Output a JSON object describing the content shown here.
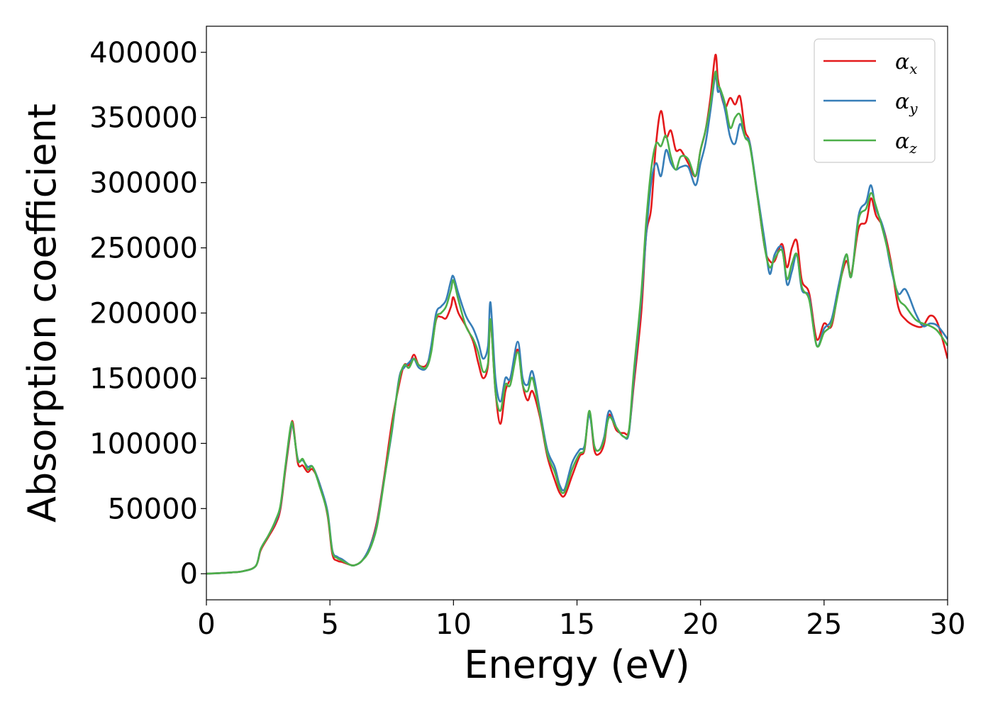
{
  "chart_data": {
    "type": "line",
    "xlabel": "Energy (eV)",
    "ylabel": "Absorption coefficient",
    "xlim": [
      0,
      30
    ],
    "ylim": [
      -20000,
      420000
    ],
    "xticks": [
      0,
      5,
      10,
      15,
      20,
      25,
      30
    ],
    "yticks": [
      0,
      50000,
      100000,
      150000,
      200000,
      250000,
      300000,
      350000,
      400000
    ],
    "xtick_labels": [
      "0",
      "5",
      "10",
      "15",
      "20",
      "25",
      "30"
    ],
    "ytick_labels": [
      "0",
      "50000",
      "100000",
      "150000",
      "200000",
      "250000",
      "300000",
      "350000",
      "400000"
    ],
    "grid": false,
    "legend_position": "top-right",
    "series": [
      {
        "name": "α_x",
        "label_base": "α",
        "label_sub": "x",
        "color": "#e41a1c",
        "x": [
          0,
          1,
          1.5,
          2,
          2.2,
          2.5,
          2.8,
          3,
          3.2,
          3.4,
          3.5,
          3.7,
          3.9,
          4.1,
          4.3,
          4.6,
          4.9,
          5.1,
          5.3,
          5.5,
          5.8,
          6,
          6.3,
          6.6,
          6.9,
          7.2,
          7.5,
          7.8,
          8,
          8.2,
          8.4,
          8.6,
          8.9,
          9.1,
          9.3,
          9.5,
          9.7,
          9.9,
          10,
          10.2,
          10.5,
          10.8,
          11,
          11.2,
          11.4,
          11.5,
          11.7,
          11.9,
          12.1,
          12.3,
          12.6,
          12.8,
          13,
          13.2,
          13.5,
          13.8,
          14.1,
          14.3,
          14.5,
          14.8,
          15.1,
          15.3,
          15.5,
          15.7,
          15.9,
          16.1,
          16.3,
          16.6,
          16.9,
          17.1,
          17.3,
          17.6,
          17.8,
          18,
          18.2,
          18.4,
          18.6,
          18.8,
          19,
          19.2,
          19.5,
          19.8,
          20,
          20.2,
          20.4,
          20.6,
          20.7,
          20.8,
          21,
          21.2,
          21.4,
          21.6,
          21.8,
          22,
          22.3,
          22.6,
          22.8,
          23,
          23.3,
          23.5,
          23.7,
          23.9,
          24.1,
          24.4,
          24.7,
          25,
          25.3,
          25.6,
          25.9,
          26.1,
          26.4,
          26.7,
          26.9,
          27.1,
          27.4,
          27.7,
          28,
          28.3,
          28.7,
          29,
          29.3,
          29.6,
          30
        ],
        "y": [
          0,
          1000,
          2000,
          6000,
          18000,
          28000,
          38000,
          50000,
          80000,
          108000,
          116000,
          85000,
          83000,
          78000,
          80000,
          68000,
          45000,
          15000,
          10000,
          9000,
          7000,
          6500,
          10000,
          20000,
          40000,
          75000,
          115000,
          145000,
          160000,
          160000,
          168000,
          160000,
          160000,
          172000,
          195000,
          197000,
          196000,
          205000,
          212000,
          200000,
          190000,
          178000,
          162000,
          150000,
          160000,
          195000,
          140000,
          115000,
          140000,
          150000,
          172000,
          145000,
          133000,
          140000,
          120000,
          90000,
          72000,
          62000,
          60000,
          75000,
          90000,
          95000,
          124000,
          95000,
          92000,
          100000,
          122000,
          110000,
          108000,
          110000,
          145000,
          200000,
          260000,
          280000,
          330000,
          355000,
          335000,
          340000,
          325000,
          325000,
          315000,
          305000,
          325000,
          340000,
          365000,
          398000,
          380000,
          370000,
          358000,
          365000,
          360000,
          366000,
          340000,
          330000,
          290000,
          250000,
          240000,
          240000,
          253000,
          235000,
          250000,
          255000,
          225000,
          215000,
          180000,
          192000,
          190000,
          220000,
          240000,
          230000,
          265000,
          270000,
          288000,
          275000,
          265000,
          240000,
          205000,
          195000,
          190000,
          190000,
          198000,
          192000,
          165000
        ]
      },
      {
        "name": "α_y",
        "label_base": "α",
        "label_sub": "y",
        "color": "#377eb8",
        "x": [
          0,
          1,
          1.5,
          2,
          2.2,
          2.5,
          2.8,
          3,
          3.2,
          3.4,
          3.5,
          3.7,
          3.9,
          4.1,
          4.3,
          4.6,
          4.9,
          5.1,
          5.3,
          5.5,
          5.8,
          6,
          6.3,
          6.6,
          6.9,
          7.2,
          7.5,
          7.8,
          8,
          8.2,
          8.4,
          8.6,
          8.9,
          9.1,
          9.3,
          9.5,
          9.7,
          9.9,
          10,
          10.2,
          10.5,
          10.8,
          11,
          11.2,
          11.4,
          11.5,
          11.7,
          11.9,
          12.1,
          12.3,
          12.6,
          12.8,
          13,
          13.2,
          13.5,
          13.8,
          14.1,
          14.3,
          14.5,
          14.8,
          15.1,
          15.3,
          15.5,
          15.7,
          15.9,
          16.1,
          16.3,
          16.6,
          16.9,
          17.1,
          17.3,
          17.6,
          17.8,
          18,
          18.2,
          18.4,
          18.6,
          18.8,
          19,
          19.2,
          19.5,
          19.8,
          20,
          20.2,
          20.4,
          20.6,
          20.7,
          20.8,
          21,
          21.2,
          21.4,
          21.6,
          21.8,
          22,
          22.3,
          22.6,
          22.8,
          23,
          23.3,
          23.5,
          23.7,
          23.9,
          24.1,
          24.4,
          24.7,
          25,
          25.3,
          25.6,
          25.9,
          26.1,
          26.4,
          26.7,
          26.9,
          27.1,
          27.4,
          27.7,
          28,
          28.3,
          28.7,
          29,
          29.3,
          29.6,
          30
        ],
        "y": [
          0,
          1000,
          2000,
          6000,
          19000,
          29000,
          40000,
          52000,
          82000,
          110000,
          113000,
          88000,
          87000,
          82000,
          82000,
          68000,
          48000,
          18000,
          13000,
          11000,
          7000,
          6500,
          10000,
          20000,
          38000,
          73000,
          108000,
          150000,
          158000,
          162000,
          165000,
          158000,
          158000,
          175000,
          200000,
          205000,
          210000,
          225000,
          228000,
          215000,
          198000,
          188000,
          178000,
          165000,
          175000,
          208000,
          150000,
          132000,
          150000,
          150000,
          178000,
          150000,
          145000,
          155000,
          125000,
          95000,
          82000,
          68000,
          65000,
          85000,
          95000,
          98000,
          122000,
          98000,
          95000,
          105000,
          125000,
          112000,
          105000,
          108000,
          150000,
          210000,
          260000,
          300000,
          315000,
          305000,
          325000,
          315000,
          310000,
          312000,
          312000,
          298000,
          315000,
          330000,
          355000,
          382000,
          370000,
          370000,
          355000,
          335000,
          330000,
          345000,
          335000,
          330000,
          292000,
          255000,
          230000,
          245000,
          250000,
          222000,
          232000,
          245000,
          218000,
          212000,
          175000,
          188000,
          195000,
          222000,
          245000,
          228000,
          275000,
          285000,
          298000,
          280000,
          265000,
          235000,
          215000,
          218000,
          200000,
          190000,
          192000,
          190000,
          180000
        ]
      },
      {
        "name": "α_z",
        "label_base": "α",
        "label_sub": "z",
        "color": "#4daf4a",
        "x": [
          0,
          1,
          1.5,
          2,
          2.2,
          2.5,
          2.8,
          3,
          3.2,
          3.4,
          3.5,
          3.7,
          3.9,
          4.1,
          4.3,
          4.6,
          4.9,
          5.1,
          5.3,
          5.5,
          5.8,
          6,
          6.3,
          6.6,
          6.9,
          7.2,
          7.5,
          7.8,
          8,
          8.2,
          8.4,
          8.6,
          8.9,
          9.1,
          9.3,
          9.5,
          9.7,
          9.9,
          10,
          10.2,
          10.5,
          10.8,
          11,
          11.2,
          11.4,
          11.5,
          11.7,
          11.9,
          12.1,
          12.3,
          12.6,
          12.8,
          13,
          13.2,
          13.5,
          13.8,
          14.1,
          14.3,
          14.5,
          14.8,
          15.1,
          15.3,
          15.5,
          15.7,
          15.9,
          16.1,
          16.3,
          16.6,
          16.9,
          17.1,
          17.3,
          17.6,
          17.8,
          18,
          18.2,
          18.4,
          18.6,
          18.8,
          19,
          19.2,
          19.5,
          19.8,
          20,
          20.2,
          20.4,
          20.6,
          20.7,
          20.8,
          21,
          21.2,
          21.4,
          21.6,
          21.8,
          22,
          22.3,
          22.6,
          22.8,
          23,
          23.3,
          23.5,
          23.7,
          23.9,
          24.1,
          24.4,
          24.7,
          25,
          25.3,
          25.6,
          25.9,
          26.1,
          26.4,
          26.7,
          26.9,
          27.1,
          27.4,
          27.7,
          28,
          28.3,
          28.7,
          29,
          29.3,
          29.6,
          30
        ],
        "y": [
          0,
          1000,
          2000,
          6000,
          19000,
          29000,
          41000,
          53000,
          83000,
          112000,
          114000,
          87000,
          88000,
          80000,
          82000,
          66000,
          46000,
          17000,
          12000,
          10000,
          7000,
          6500,
          10000,
          18000,
          36000,
          72000,
          110000,
          148000,
          160000,
          158000,
          165000,
          160000,
          158000,
          170000,
          196000,
          200000,
          205000,
          218000,
          225000,
          210000,
          190000,
          180000,
          170000,
          155000,
          162000,
          195000,
          140000,
          125000,
          145000,
          145000,
          170000,
          145000,
          140000,
          150000,
          122000,
          92000,
          78000,
          65000,
          63000,
          80000,
          92000,
          96000,
          125000,
          98000,
          95000,
          103000,
          120000,
          112000,
          105000,
          110000,
          155000,
          215000,
          270000,
          310000,
          330000,
          328000,
          336000,
          320000,
          310000,
          320000,
          318000,
          305000,
          325000,
          340000,
          360000,
          385000,
          375000,
          372000,
          360000,
          342000,
          350000,
          352000,
          335000,
          328000,
          290000,
          250000,
          235000,
          242000,
          248000,
          226000,
          238000,
          245000,
          220000,
          210000,
          175000,
          185000,
          192000,
          218000,
          245000,
          228000,
          272000,
          280000,
          292000,
          282000,
          262000,
          238000,
          212000,
          205000,
          195000,
          192000,
          190000,
          186000,
          175000
        ]
      }
    ]
  }
}
